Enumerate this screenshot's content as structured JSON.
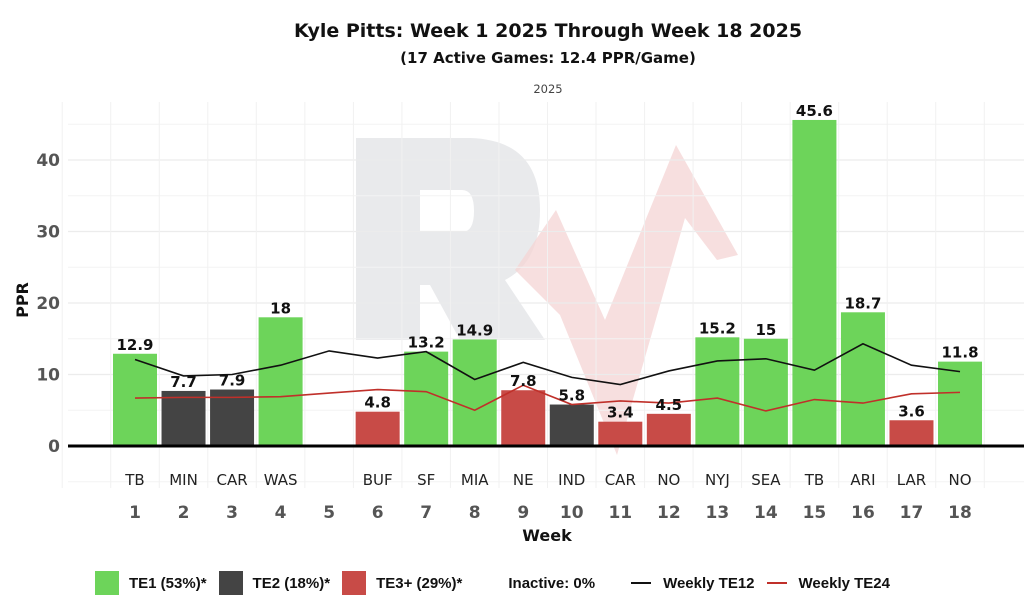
{
  "chart_data": {
    "type": "bar",
    "title": "Kyle Pitts: Week 1 2025 Through Week 18 2025",
    "subtitle": "(17 Active Games: 12.4 PPR/Game)",
    "facet_label": "2025",
    "xlabel": "Week",
    "ylabel": "PPR",
    "ylim": [
      -6,
      47
    ],
    "yticks": [
      0,
      10,
      20,
      30,
      40
    ],
    "grid": true,
    "legend_position": "bottom",
    "categories": [
      "1",
      "2",
      "3",
      "4",
      "5",
      "6",
      "7",
      "8",
      "9",
      "10",
      "11",
      "12",
      "13",
      "14",
      "15",
      "16",
      "17",
      "18"
    ],
    "opponents": [
      "TB",
      "MIN",
      "CAR",
      "WAS",
      "",
      "BUF",
      "SF",
      "MIA",
      "NE",
      "IND",
      "CAR",
      "NO",
      "NYJ",
      "SEA",
      "TB",
      "ARI",
      "LAR",
      "NO"
    ],
    "values": [
      12.9,
      7.7,
      7.9,
      18,
      null,
      4.8,
      13.2,
      14.9,
      7.8,
      5.8,
      3.4,
      4.5,
      15.2,
      15,
      45.6,
      18.7,
      3.6,
      11.8
    ],
    "value_labels": [
      "12.9",
      "7.7",
      "7.9",
      "18",
      "",
      "4.8",
      "13.2",
      "14.9",
      "7.8",
      "5.8",
      "3.4",
      "4.5",
      "15.2",
      "15",
      "45.6",
      "18.7",
      "3.6",
      "11.8"
    ],
    "tiers": [
      "TE1",
      "TE2",
      "TE2",
      "TE1",
      null,
      "TE3+",
      "TE1",
      "TE1",
      "TE3+",
      "TE2",
      "TE3+",
      "TE3+",
      "TE1",
      "TE1",
      "TE1",
      "TE1",
      "TE3+",
      "TE1"
    ],
    "tier_colors": {
      "TE1": "#6dd45a",
      "TE2": "#444444",
      "TE3+": "#c84b47"
    },
    "series": [
      {
        "name": "Weekly TE12",
        "color": "#111111",
        "values": [
          12.1,
          9.8,
          10.0,
          11.3,
          13.3,
          12.3,
          13.2,
          9.3,
          11.7,
          9.6,
          8.6,
          10.5,
          11.9,
          12.2,
          10.6,
          14.3,
          11.3,
          10.4
        ]
      },
      {
        "name": "Weekly TE24",
        "color": "#c0302a",
        "values": [
          6.7,
          6.8,
          6.8,
          6.9,
          7.4,
          7.9,
          7.6,
          5.0,
          8.5,
          5.8,
          6.3,
          6.0,
          6.7,
          4.9,
          6.5,
          6.0,
          7.3,
          7.5
        ]
      }
    ],
    "legend": [
      {
        "label": "TE1 (53%)*",
        "kind": "swatch",
        "color": "#6dd45a"
      },
      {
        "label": "TE2 (18%)*",
        "kind": "swatch",
        "color": "#444444"
      },
      {
        "label": "TE3+ (29%)*",
        "kind": "swatch",
        "color": "#c84b47"
      },
      {
        "label": "Inactive: 0%",
        "kind": "text"
      },
      {
        "label": "Weekly TE12",
        "kind": "line",
        "color": "#111111"
      },
      {
        "label": "Weekly TE24",
        "kind": "line",
        "color": "#c0302a"
      }
    ]
  }
}
